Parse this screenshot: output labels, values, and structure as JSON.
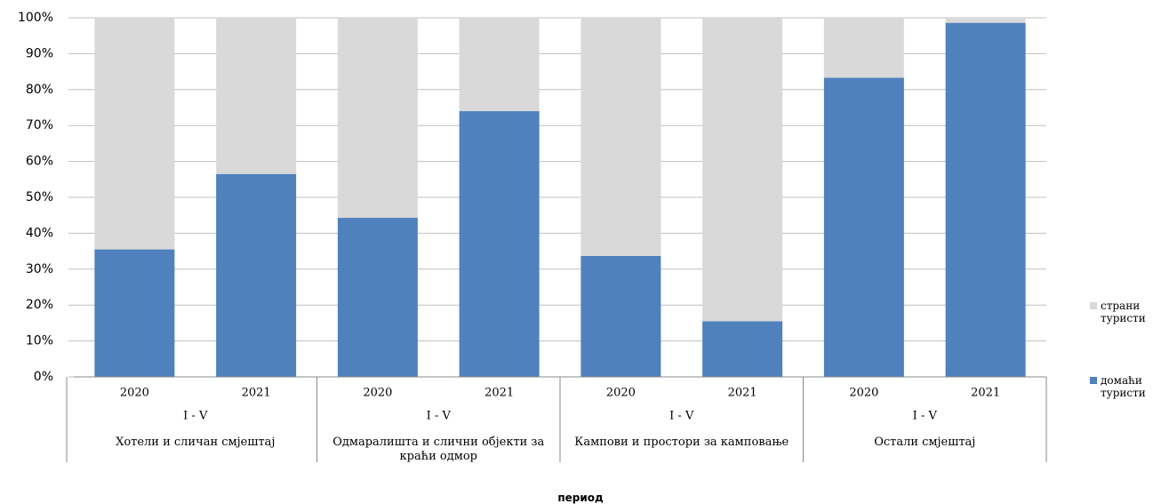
{
  "chart_data": {
    "type": "stacked_bar_100",
    "categories": [
      "2020",
      "2021",
      "2020",
      "2021",
      "2020",
      "2021",
      "2020",
      "2021"
    ],
    "periods": [
      "I - V",
      "I - V",
      "I - V",
      "I - V"
    ],
    "groups": [
      "Хотели и сличан смјештај",
      "Одмаралишта и слични објекти за краћи одмор",
      "Кампови и простори за камповање",
      "Остали смјештај"
    ],
    "x_label": "период",
    "series": [
      {
        "name": "домаћи туристи",
        "color": "#4f81bd",
        "values": [
          35.5,
          56.5,
          44.3,
          74,
          33.7,
          15.5,
          83.3,
          98.6
        ]
      },
      {
        "name": "страни туристи",
        "color": "#d9d9d9",
        "values": [
          64.5,
          43.5,
          55.7,
          26,
          66.3,
          84.5,
          16.7,
          1.4
        ]
      }
    ],
    "ylim": [
      0,
      100
    ],
    "yticks": [
      {
        "value": 0,
        "label": "0%"
      },
      {
        "value": 10,
        "label": "10%"
      },
      {
        "value": 20,
        "label": "20%"
      },
      {
        "value": 30,
        "label": "30%"
      },
      {
        "value": 40,
        "label": "40%"
      },
      {
        "value": 50,
        "label": "50%"
      },
      {
        "value": 60,
        "label": "60%"
      },
      {
        "value": 70,
        "label": "70%"
      },
      {
        "value": 80,
        "label": "80%"
      },
      {
        "value": 90,
        "label": "90%"
      },
      {
        "value": 100,
        "label": "100%"
      }
    ],
    "grid": true,
    "legend": "right"
  }
}
